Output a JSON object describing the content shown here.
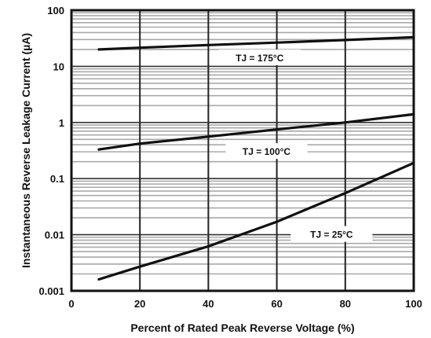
{
  "chart_data": {
    "type": "line",
    "title": "",
    "xlabel": "Percent of Rated Peak Reverse Voltage (%)",
    "ylabel": "Instantaneous Reverse Leakage Current (µA)",
    "xlim": [
      0,
      100
    ],
    "ylim": [
      0.001,
      100
    ],
    "yscale": "log",
    "grid": true,
    "x_ticks": [
      0,
      20,
      40,
      60,
      80,
      100
    ],
    "x_tick_labels": [
      "0",
      "20",
      "40",
      "60",
      "80",
      "100"
    ],
    "y_ticks": [
      0.001,
      0.01,
      0.1,
      1,
      10,
      100
    ],
    "y_tick_labels": [
      "0.001",
      "0.01",
      "0.1",
      "1",
      "10",
      "100"
    ],
    "series": [
      {
        "name": "TJ = 175°C",
        "x": [
          8,
          20,
          40,
          60,
          80,
          100
        ],
        "y": [
          20,
          21.5,
          24,
          26.5,
          29.5,
          33
        ],
        "label_at": [
          55,
          14
        ]
      },
      {
        "name": "TJ = 100°C",
        "x": [
          8,
          20,
          40,
          60,
          80,
          100
        ],
        "y": [
          0.33,
          0.42,
          0.56,
          0.75,
          1.0,
          1.4
        ],
        "label_at": [
          57,
          0.3
        ]
      },
      {
        "name": "TJ = 25°C",
        "x": [
          8,
          20,
          40,
          60,
          80,
          100
        ],
        "y": [
          0.0016,
          0.0027,
          0.0062,
          0.017,
          0.055,
          0.19
        ],
        "label_at": [
          76,
          0.01
        ]
      }
    ]
  }
}
